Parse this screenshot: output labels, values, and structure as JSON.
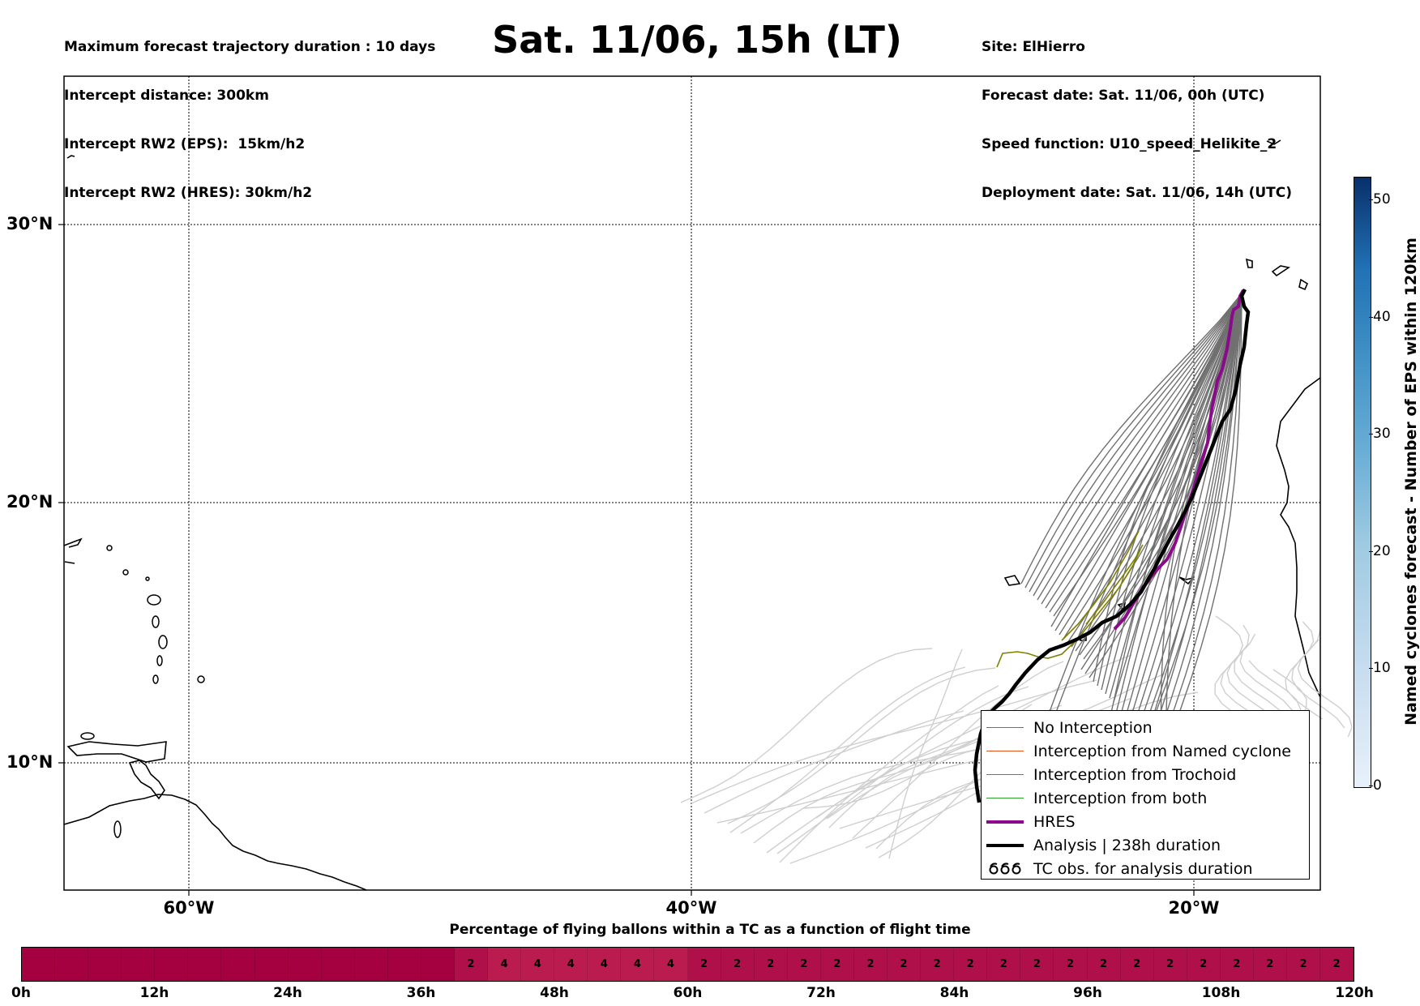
{
  "header": {
    "left_lines": [
      "Maximum forecast trajectory duration : 10 days",
      "Intercept distance: 300km",
      "Intercept RW2 (EPS):  15km/h2",
      "Intercept RW2 (HRES): 30km/h2"
    ],
    "title": "Sat. 11/06, 15h (LT)",
    "right_lines": [
      "Site: ElHierro",
      "Forecast date: Sat. 11/06, 00h (UTC)",
      "Speed function: U10_speed_Helikite_2",
      "Deployment date: Sat. 11/06, 14h (UTC)"
    ]
  },
  "map": {
    "lat_labels": [
      "30°N",
      "20°N",
      "10°N"
    ],
    "lon_labels": [
      "60°W",
      "40°W",
      "20°W"
    ],
    "lat_range": [
      5.5,
      35
    ],
    "lon_range": [
      -65,
      -15
    ]
  },
  "legend": {
    "items": [
      {
        "label": "No Interception",
        "color": "#707070",
        "width": 1.5
      },
      {
        "label": "Interception from Named cyclone",
        "color": "#e5531a",
        "width": 1.5
      },
      {
        "label": "Interception from Trochoid",
        "color": "#808000",
        "width": 1.5
      },
      {
        "label": "Interception from both",
        "color": "#2ca02c",
        "width": 1.5
      },
      {
        "label": "HRES",
        "color": "#8b0a8b",
        "width": 4
      },
      {
        "label": "Analysis | 238h duration",
        "color": "#000000",
        "width": 4.5
      }
    ],
    "tc_obs_label": "TC obs. for analysis duration",
    "tc_obs_icon": "cyclone-symbol-icon"
  },
  "colorbar": {
    "label": "Named cyclones forecast - Number of EPS within 120km",
    "ticks": [
      0,
      10,
      20,
      30,
      40,
      50
    ],
    "max": 52
  },
  "timeline": {
    "title": "Percentage of flying ballons within a TC as a function of flight time",
    "tick_labels": [
      "0h",
      "12h",
      "24h",
      "36h",
      "48h",
      "60h",
      "72h",
      "84h",
      "96h",
      "108h",
      "120h"
    ],
    "segments": [
      "",
      "",
      "",
      "",
      "",
      "",
      "",
      "",
      "",
      "",
      "",
      "",
      "",
      "2",
      "4",
      "4",
      "4",
      "4",
      "4",
      "4",
      "2",
      "2",
      "2",
      "2",
      "2",
      "2",
      "2",
      "2",
      "2",
      "2",
      "2",
      "2",
      "2",
      "2",
      "2",
      "2",
      "2",
      "2",
      "2",
      "2"
    ]
  },
  "colors": {
    "timeline_zero": "#a50040",
    "timeline_two": "#b0104a",
    "timeline_four": "#bb1c50",
    "gray_ensemble": "#707070",
    "light_ensemble": "#cfcfcf"
  }
}
